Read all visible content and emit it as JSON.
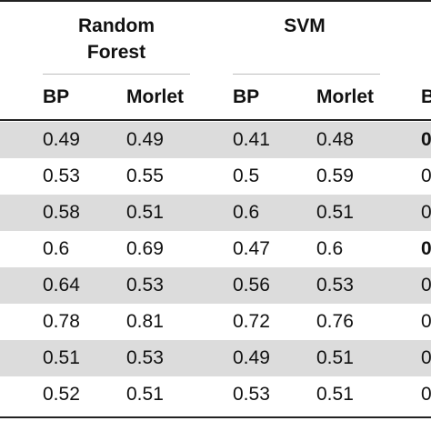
{
  "table": {
    "groups": [
      {
        "line1": "Random",
        "line2": "Forest"
      },
      {
        "line1": "SVM"
      }
    ],
    "subheaders": [
      "BP",
      "Morlet",
      "BP",
      "Morlet",
      "B"
    ],
    "rows": [
      {
        "cells": [
          "0.49",
          "0.49",
          "0.41",
          "0.48",
          "0"
        ],
        "last_bold": true
      },
      {
        "cells": [
          "0.53",
          "0.55",
          "0.5",
          "0.59",
          "0"
        ],
        "last_bold": false
      },
      {
        "cells": [
          "0.58",
          "0.51",
          "0.6",
          "0.51",
          "0"
        ],
        "last_bold": false
      },
      {
        "cells": [
          "0.6",
          "0.69",
          "0.47",
          "0.6",
          "0"
        ],
        "last_bold": true
      },
      {
        "cells": [
          "0.64",
          "0.53",
          "0.56",
          "0.53",
          "0"
        ],
        "last_bold": false
      },
      {
        "cells": [
          "0.78",
          "0.81",
          "0.72",
          "0.76",
          "0"
        ],
        "last_bold": false
      },
      {
        "cells": [
          "0.51",
          "0.53",
          "0.49",
          "0.51",
          "0"
        ],
        "last_bold": false
      },
      {
        "cells": [
          "0.52",
          "0.51",
          "0.53",
          "0.51",
          "0"
        ],
        "last_bold": false
      }
    ],
    "shaded_row_color": "#dcdcdc",
    "rule_color": "#222222"
  }
}
